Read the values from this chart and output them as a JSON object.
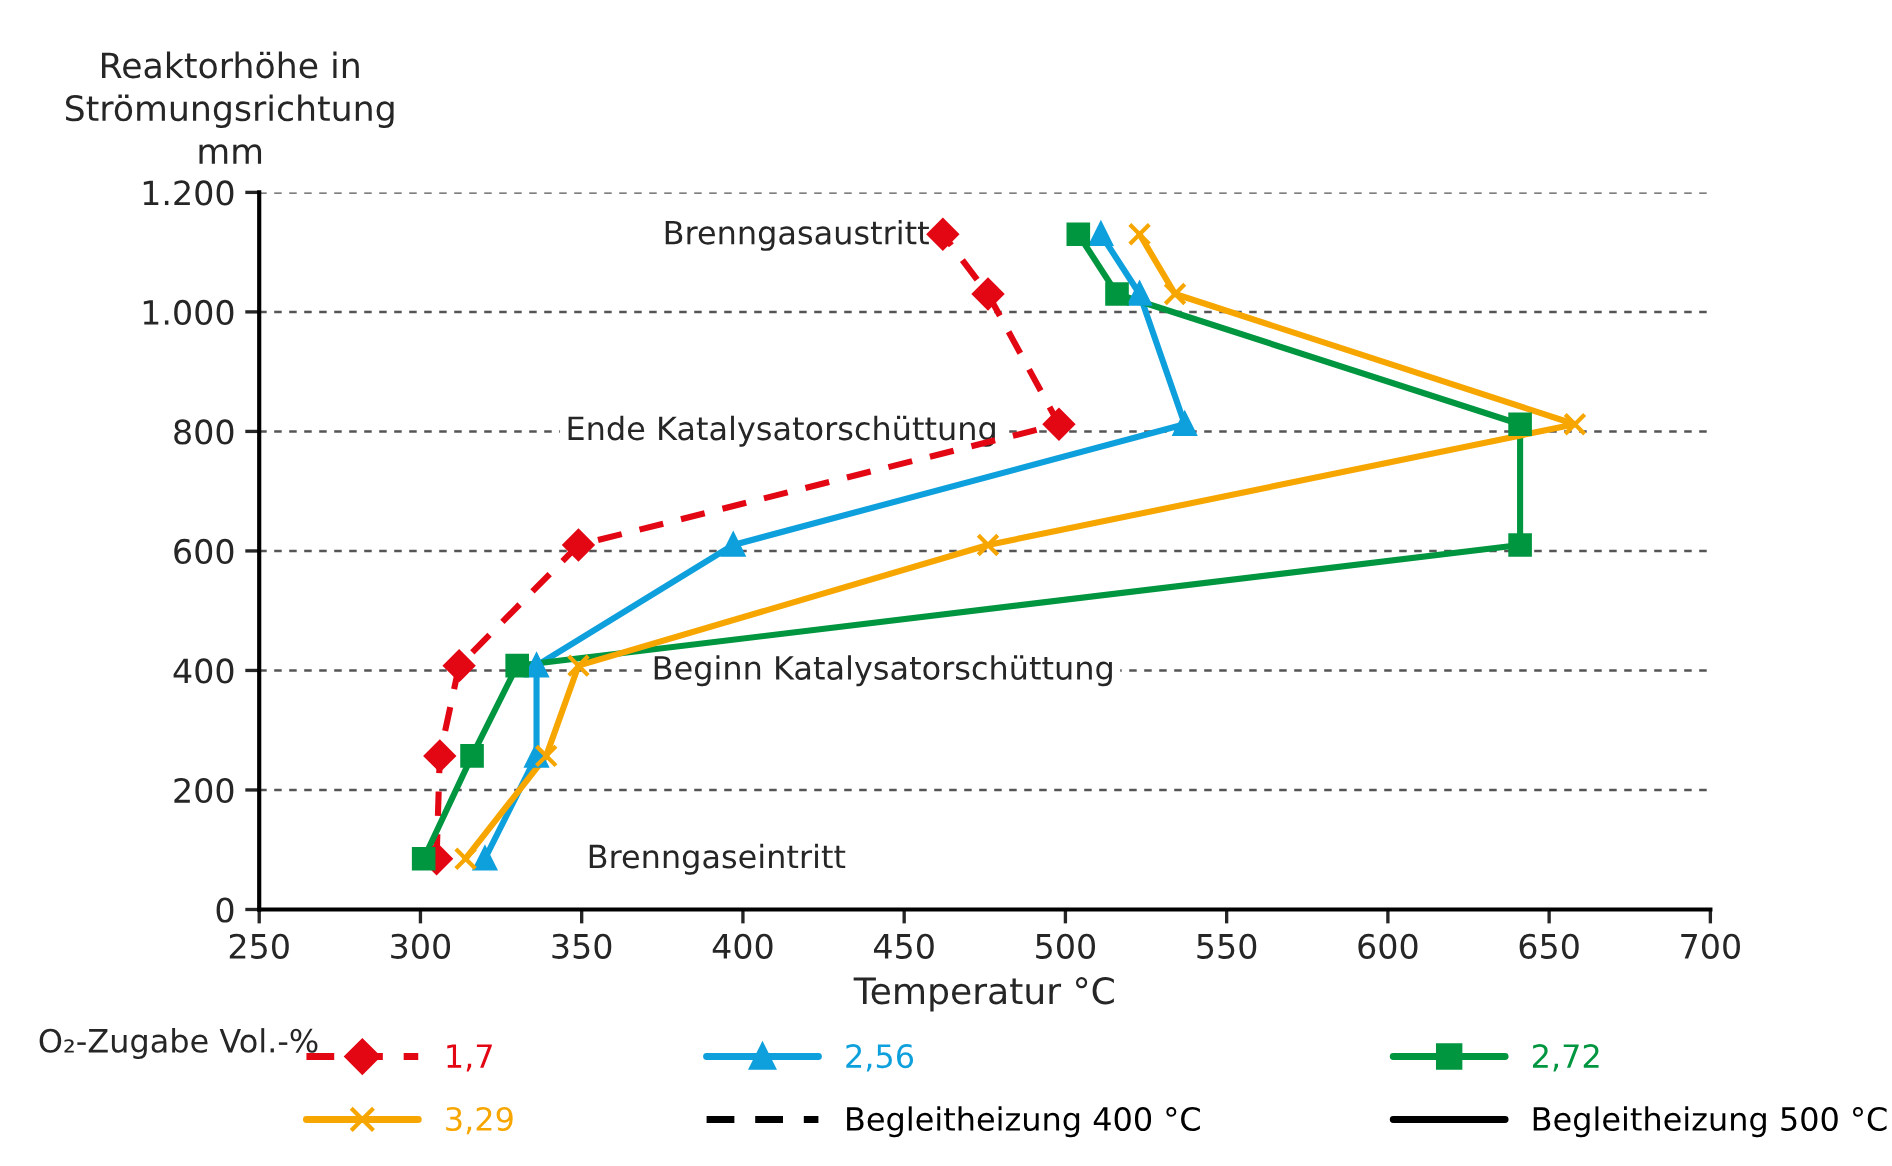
{
  "chart_data": {
    "type": "line",
    "xlabel": "Temperatur °C",
    "ylabel": "Reaktorhöhe in\nStrömungsrichtung\nmm",
    "legend_title": "O₂-Zugabe Vol.-%",
    "xlim": [
      250,
      700
    ],
    "xticks": [
      250,
      300,
      350,
      400,
      450,
      500,
      550,
      600,
      650,
      700
    ],
    "ylim": [
      0,
      1200
    ],
    "yticks": [
      0,
      200,
      400,
      600,
      800,
      {
        "value": 1000,
        "label": "1.000"
      },
      {
        "value": 1200,
        "label": "1.200"
      }
    ],
    "grid": "y",
    "legend": "bottom",
    "series": [
      {
        "name": "1,7",
        "color": "#e30613",
        "marker": "diamond",
        "line_style": "dashed",
        "x": [
          305,
          306,
          312,
          349,
          498,
          476,
          462
        ],
        "values": [
          85,
          257,
          408,
          610,
          812,
          1030,
          1130
        ]
      },
      {
        "name": "2,56",
        "color": "#0ea0dc",
        "marker": "triangle",
        "line_style": "solid",
        "x": [
          320,
          336,
          336,
          397,
          537,
          523,
          511
        ],
        "values": [
          85,
          257,
          408,
          610,
          812,
          1030,
          1130
        ]
      },
      {
        "name": "2,72",
        "color": "#009640",
        "marker": "square",
        "line_style": "solid",
        "x": [
          301,
          316,
          330,
          641,
          641,
          516,
          504
        ],
        "values": [
          85,
          257,
          408,
          610,
          812,
          1030,
          1130
        ]
      },
      {
        "name": "3,29",
        "color": "#f7a600",
        "marker": "cross",
        "line_style": "solid",
        "x": [
          314,
          339,
          349,
          476,
          658,
          534,
          523
        ],
        "values": [
          85,
          257,
          408,
          610,
          812,
          1030,
          1130
        ]
      }
    ],
    "annotations": [
      "Brenngasaustritt",
      "Ende Katalysatorschüttung",
      "Beginn Katalysatorschüttung",
      "Brenngaseintritt",
      "Begleitheizung 400 °C",
      "Begleitheizung 500 °C"
    ]
  }
}
